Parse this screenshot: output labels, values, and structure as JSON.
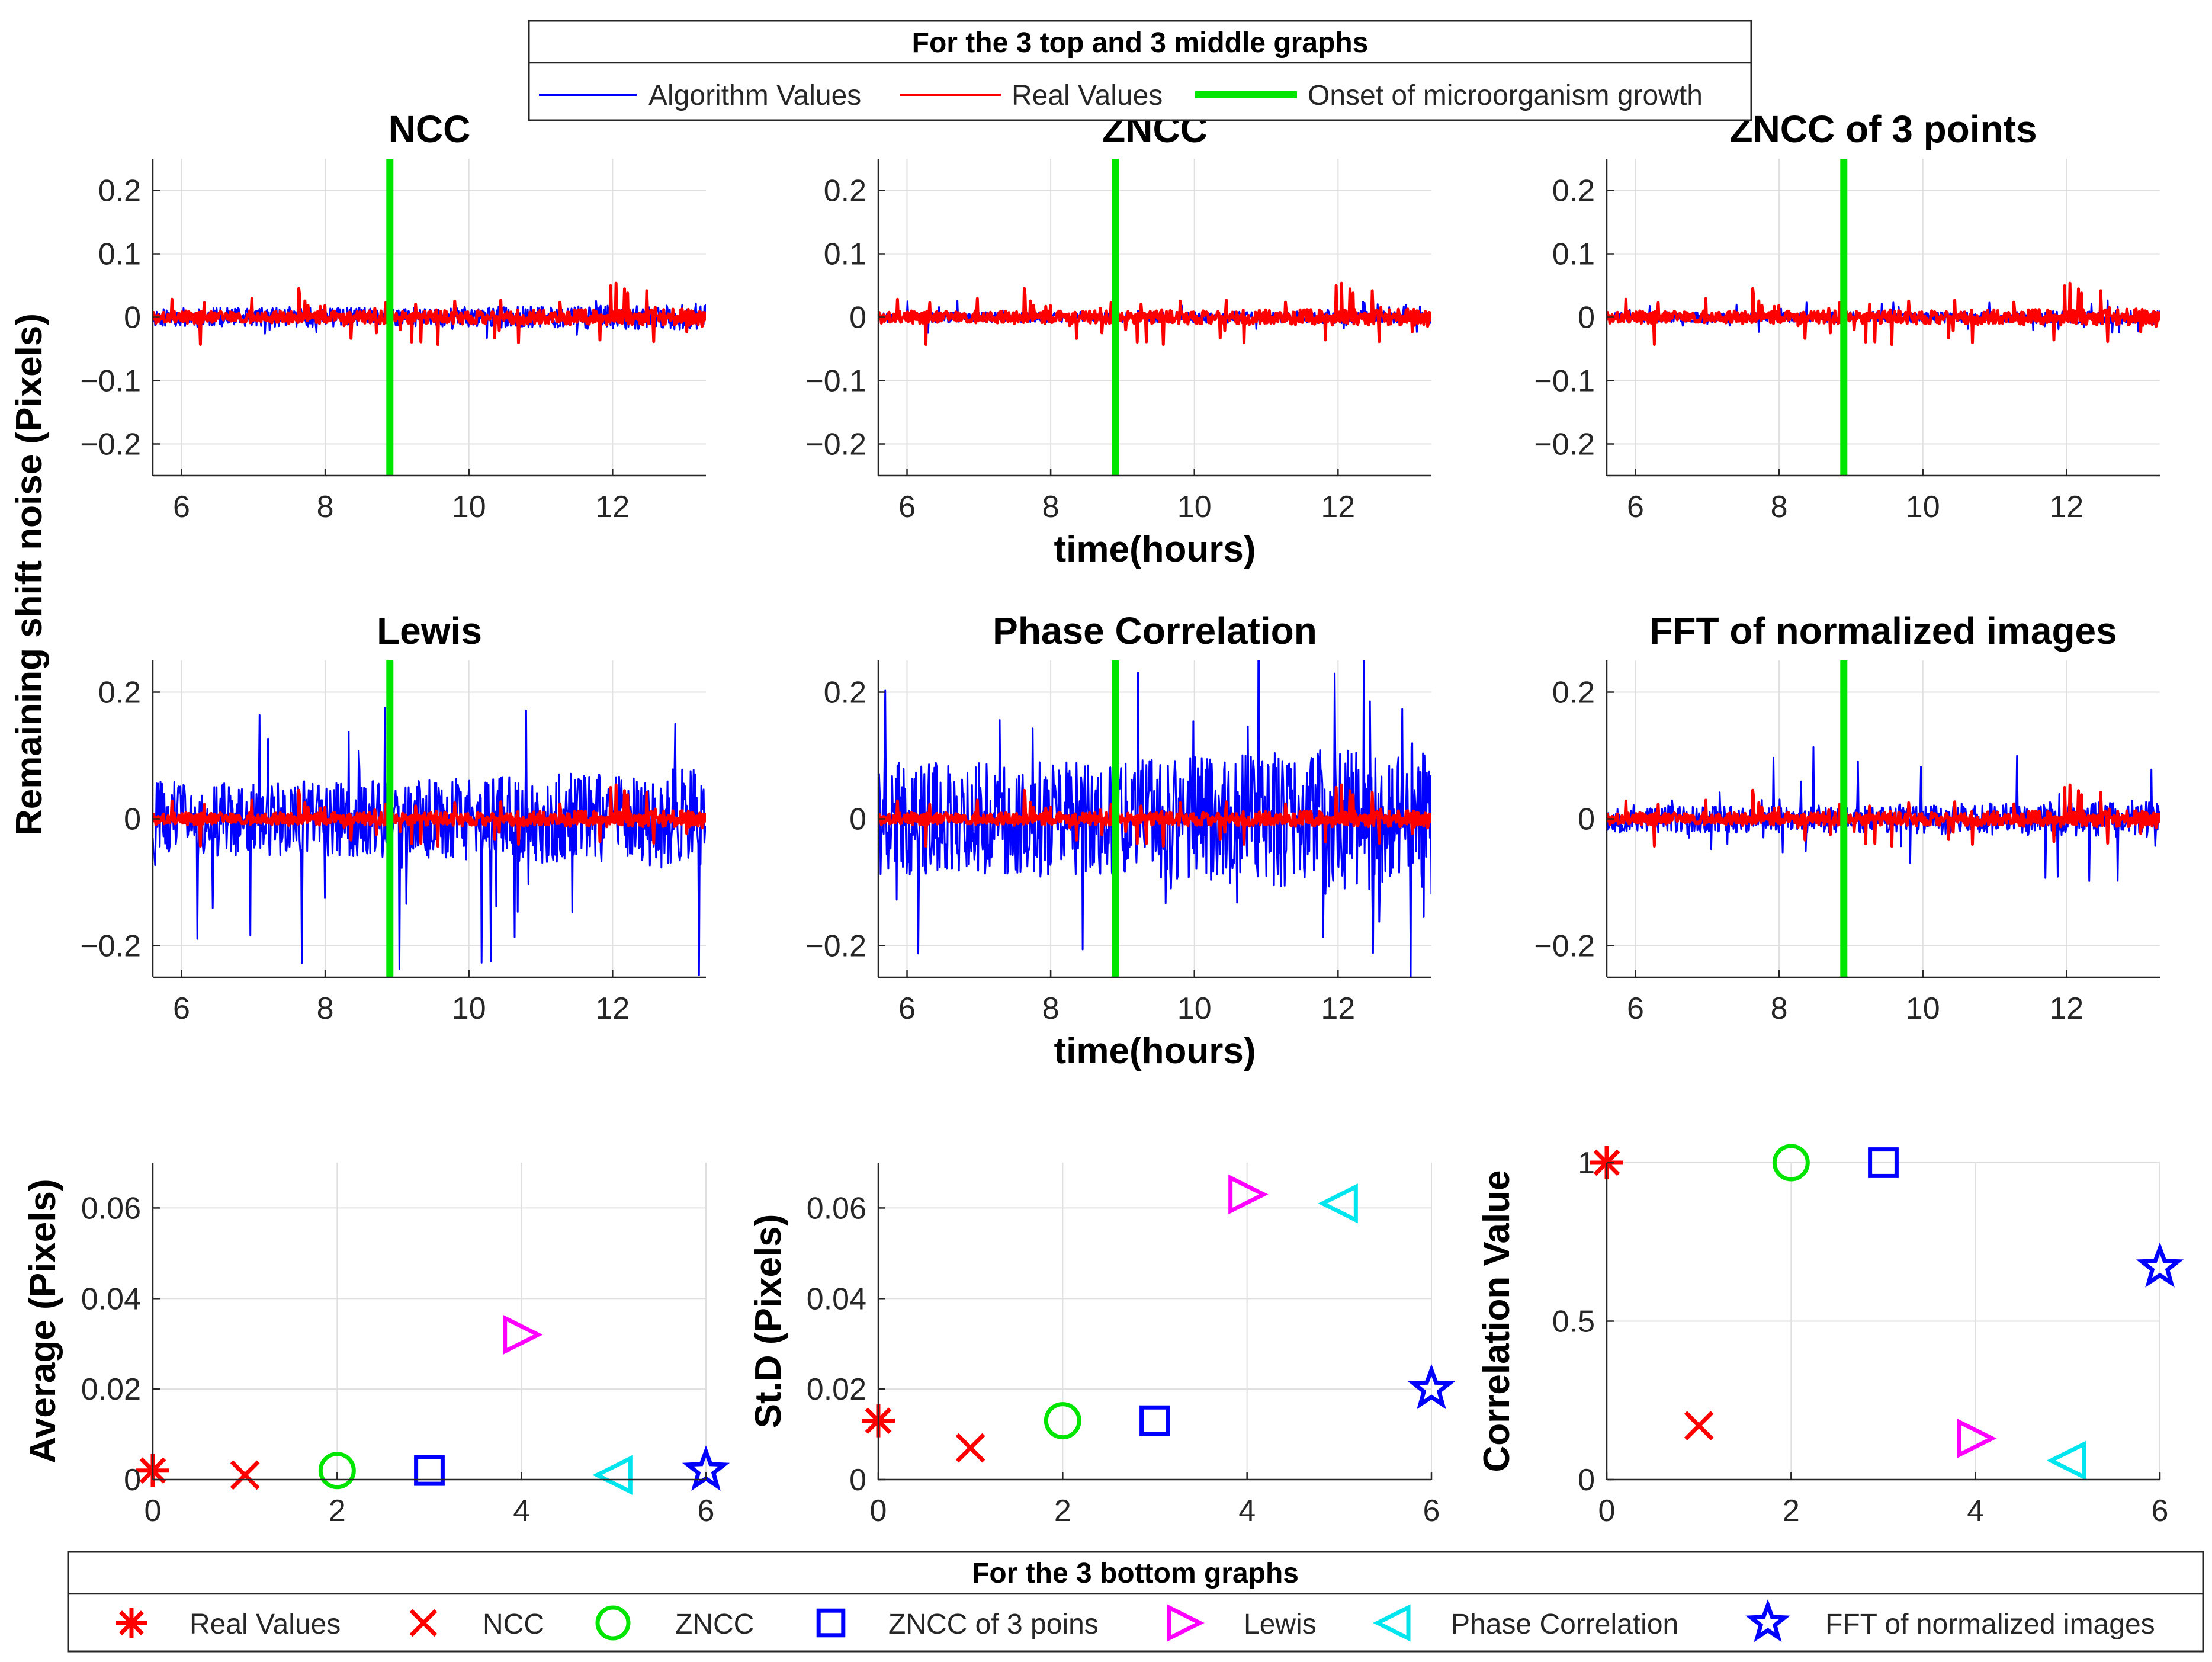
{
  "figure": {
    "shared_ylabel": "Remaining shift noise (Pixels)",
    "top_legend": {
      "title": "For the 3 top and 3 middle graphs",
      "entries": [
        {
          "label": "Algorithm Values",
          "color": "#0000ff"
        },
        {
          "label": "Real Values",
          "color": "#ff0000"
        },
        {
          "label": "Onset of microorganism growth",
          "color": "#00e600"
        }
      ]
    },
    "bottom_legend": {
      "title": "For the 3 bottom graphs",
      "entries": [
        {
          "label": "Real Values",
          "marker": "asterisk",
          "color": "#ff0000"
        },
        {
          "label": "NCC",
          "marker": "x",
          "color": "#ff0000"
        },
        {
          "label": "ZNCC",
          "marker": "circle",
          "color": "#00e600"
        },
        {
          "label": "ZNCC of 3 poins",
          "marker": "square",
          "color": "#0000ff"
        },
        {
          "label": "Lewis",
          "marker": "triangle-right",
          "color": "#ff00ff"
        },
        {
          "label": "Phase Correlation",
          "marker": "triangle-left",
          "color": "#00e5ee"
        },
        {
          "label": "FFT of normalized images",
          "marker": "star",
          "color": "#0000ff"
        }
      ]
    }
  },
  "chart_data": [
    {
      "id": "ncc",
      "type": "line",
      "title": "NCC",
      "xlabel": "",
      "xlim": [
        5.6,
        13.3
      ],
      "ylim": [
        -0.25,
        0.25
      ],
      "xticks": [
        6,
        8,
        10,
        12
      ],
      "yticks": [
        -0.2,
        -0.1,
        0,
        0.1,
        0.2
      ],
      "ytick_labels": [
        "−0.2",
        "−0.1",
        "0",
        "0.1",
        "0.2"
      ],
      "onset_x": 8.9,
      "series": [
        {
          "name": "Algorithm Values",
          "color": "#0000ff",
          "amplitude": 0.015,
          "spikes": 0.02,
          "seed": 11
        },
        {
          "name": "Real Values",
          "color": "#ff0000",
          "amplitude": 0.01,
          "spikes": 0.04,
          "seed": 3
        }
      ]
    },
    {
      "id": "zncc",
      "type": "line",
      "title": "ZNCC",
      "xlabel": "time(hours)",
      "xlim": [
        5.6,
        13.3
      ],
      "ylim": [
        -0.25,
        0.25
      ],
      "xticks": [
        6,
        8,
        10,
        12
      ],
      "yticks": [
        -0.2,
        -0.1,
        0,
        0.1,
        0.2
      ],
      "ytick_labels": [
        "−0.2",
        "−0.1",
        "0",
        "0.1",
        "0.2"
      ],
      "onset_x": 8.9,
      "series": [
        {
          "name": "Algorithm Values",
          "color": "#0000ff",
          "amplitude": 0.008,
          "spikes": 0.02,
          "seed": 17
        },
        {
          "name": "Real Values",
          "color": "#ff0000",
          "amplitude": 0.01,
          "spikes": 0.04,
          "seed": 3
        }
      ]
    },
    {
      "id": "zncc3",
      "type": "line",
      "title": "ZNCC of 3 points",
      "xlabel": "",
      "xlim": [
        5.6,
        13.3
      ],
      "ylim": [
        -0.25,
        0.25
      ],
      "xticks": [
        6,
        8,
        10,
        12
      ],
      "yticks": [
        -0.2,
        -0.1,
        0,
        0.1,
        0.2
      ],
      "ytick_labels": [
        "−0.2",
        "−0.1",
        "0",
        "0.1",
        "0.2"
      ],
      "onset_x": 8.9,
      "series": [
        {
          "name": "Algorithm Values",
          "color": "#0000ff",
          "amplitude": 0.008,
          "spikes": 0.02,
          "seed": 23
        },
        {
          "name": "Real Values",
          "color": "#ff0000",
          "amplitude": 0.01,
          "spikes": 0.04,
          "seed": 3
        }
      ]
    },
    {
      "id": "lewis",
      "type": "line",
      "title": "Lewis",
      "xlabel": "",
      "xlim": [
        5.6,
        13.3
      ],
      "ylim": [
        -0.25,
        0.25
      ],
      "xticks": [
        6,
        8,
        10,
        12
      ],
      "yticks": [
        -0.2,
        0,
        0.2
      ],
      "ytick_labels": [
        "−0.2",
        "0",
        "0.2"
      ],
      "onset_x": 8.9,
      "series": [
        {
          "name": "Algorithm Values",
          "color": "#0000ff",
          "amplitude": 0.06,
          "spikes": 0.22,
          "seed": 31
        },
        {
          "name": "Real Values",
          "color": "#ff0000",
          "amplitude": 0.01,
          "spikes": 0.04,
          "seed": 3
        }
      ]
    },
    {
      "id": "phase",
      "type": "line",
      "title": "Phase Correlation",
      "xlabel": "time(hours)",
      "xlim": [
        5.6,
        13.3
      ],
      "ylim": [
        -0.25,
        0.25
      ],
      "xticks": [
        6,
        8,
        10,
        12
      ],
      "yticks": [
        -0.2,
        0,
        0.2
      ],
      "ytick_labels": [
        "−0.2",
        "0",
        "0.2"
      ],
      "onset_x": 8.9,
      "series": [
        {
          "name": "Algorithm Values",
          "color": "#0000ff",
          "amplitude": 0.09,
          "spikes": 0.25,
          "seed": 41
        },
        {
          "name": "Real Values",
          "color": "#ff0000",
          "amplitude": 0.01,
          "spikes": 0.04,
          "seed": 3
        }
      ]
    },
    {
      "id": "fft",
      "type": "line",
      "title": "FFT of normalized images",
      "xlabel": "",
      "xlim": [
        5.6,
        13.3
      ],
      "ylim": [
        -0.25,
        0.25
      ],
      "xticks": [
        6,
        8,
        10,
        12
      ],
      "yticks": [
        -0.2,
        0,
        0.2
      ],
      "ytick_labels": [
        "−0.2",
        "0",
        "0.2"
      ],
      "onset_x": 8.9,
      "series": [
        {
          "name": "Algorithm Values",
          "color": "#0000ff",
          "amplitude": 0.022,
          "spikes": 0.1,
          "seed": 53
        },
        {
          "name": "Real Values",
          "color": "#ff0000",
          "amplitude": 0.01,
          "spikes": 0.04,
          "seed": 3
        }
      ]
    },
    {
      "id": "average",
      "type": "scatter",
      "title": "",
      "xlabel": "",
      "ylabel": "Average (Pixels)",
      "xlim": [
        0,
        6
      ],
      "ylim": [
        0,
        0.07
      ],
      "xticks": [
        0,
        2,
        4,
        6
      ],
      "yticks": [
        0,
        0.02,
        0.04,
        0.06
      ],
      "ytick_labels": [
        "0",
        "0.02",
        "0.04",
        "0.06"
      ],
      "points": [
        {
          "x": 0,
          "y": 0.002,
          "marker": "asterisk",
          "color": "#ff0000",
          "label": "Real Values"
        },
        {
          "x": 1,
          "y": 0.001,
          "marker": "x",
          "color": "#ff0000",
          "label": "NCC"
        },
        {
          "x": 2,
          "y": 0.002,
          "marker": "circle",
          "color": "#00e600",
          "label": "ZNCC"
        },
        {
          "x": 3,
          "y": 0.002,
          "marker": "square",
          "color": "#0000ff",
          "label": "ZNCC of 3 poins"
        },
        {
          "x": 4,
          "y": 0.032,
          "marker": "triangle-right",
          "color": "#ff00ff",
          "label": "Lewis"
        },
        {
          "x": 5,
          "y": 0.001,
          "marker": "triangle-left",
          "color": "#00e5ee",
          "label": "Phase Correlation"
        },
        {
          "x": 6,
          "y": 0.002,
          "marker": "star",
          "color": "#0000ff",
          "label": "FFT of normalized images"
        }
      ]
    },
    {
      "id": "std",
      "type": "scatter",
      "title": "",
      "xlabel": "",
      "ylabel": "St.D (Pixels)",
      "xlim": [
        0,
        6
      ],
      "ylim": [
        0,
        0.07
      ],
      "xticks": [
        0,
        2,
        4,
        6
      ],
      "yticks": [
        0,
        0.02,
        0.04,
        0.06
      ],
      "ytick_labels": [
        "0",
        "0.02",
        "0.04",
        "0.06"
      ],
      "points": [
        {
          "x": 0,
          "y": 0.013,
          "marker": "asterisk",
          "color": "#ff0000",
          "label": "Real Values"
        },
        {
          "x": 1,
          "y": 0.007,
          "marker": "x",
          "color": "#ff0000",
          "label": "NCC"
        },
        {
          "x": 2,
          "y": 0.013,
          "marker": "circle",
          "color": "#00e600",
          "label": "ZNCC"
        },
        {
          "x": 3,
          "y": 0.013,
          "marker": "square",
          "color": "#0000ff",
          "label": "ZNCC of 3 poins"
        },
        {
          "x": 4,
          "y": 0.063,
          "marker": "triangle-right",
          "color": "#ff00ff",
          "label": "Lewis"
        },
        {
          "x": 5,
          "y": 0.061,
          "marker": "triangle-left",
          "color": "#00e5ee",
          "label": "Phase Correlation"
        },
        {
          "x": 6,
          "y": 0.02,
          "marker": "star",
          "color": "#0000ff",
          "label": "FFT of normalized images"
        }
      ]
    },
    {
      "id": "correlation",
      "type": "scatter",
      "title": "",
      "xlabel": "",
      "ylabel": "Correlation Value",
      "xlim": [
        0,
        6
      ],
      "ylim": [
        0,
        1
      ],
      "xticks": [
        0,
        2,
        4,
        6
      ],
      "yticks": [
        0,
        0.5,
        1
      ],
      "ytick_labels": [
        "0",
        "0.5",
        "1"
      ],
      "points": [
        {
          "x": 0,
          "y": 1,
          "marker": "asterisk",
          "color": "#ff0000",
          "label": "Real Values"
        },
        {
          "x": 1,
          "y": 0.17,
          "marker": "x",
          "color": "#ff0000",
          "label": "NCC"
        },
        {
          "x": 2,
          "y": 1,
          "marker": "circle",
          "color": "#00e600",
          "label": "ZNCC"
        },
        {
          "x": 3,
          "y": 1,
          "marker": "square",
          "color": "#0000ff",
          "label": "ZNCC of 3 poins"
        },
        {
          "x": 4,
          "y": 0.13,
          "marker": "triangle-right",
          "color": "#ff00ff",
          "label": "Lewis"
        },
        {
          "x": 5,
          "y": 0.06,
          "marker": "triangle-left",
          "color": "#00e5ee",
          "label": "Phase Correlation"
        },
        {
          "x": 6,
          "y": 0.67,
          "marker": "star",
          "color": "#0000ff",
          "label": "FFT of normalized images"
        }
      ]
    }
  ]
}
